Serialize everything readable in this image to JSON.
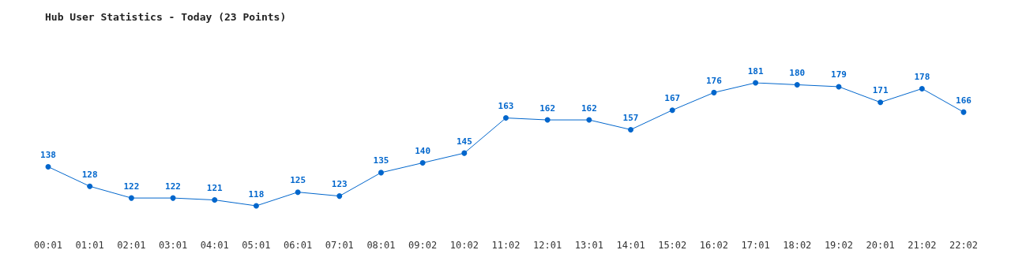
{
  "chart_data": {
    "type": "line",
    "title": "Hub User Statistics - Today (23 Points)",
    "categories": [
      "00:01",
      "01:01",
      "02:01",
      "03:01",
      "04:01",
      "05:01",
      "06:01",
      "07:01",
      "08:01",
      "09:02",
      "10:02",
      "11:02",
      "12:01",
      "13:01",
      "14:01",
      "15:02",
      "16:02",
      "17:01",
      "18:02",
      "19:02",
      "20:01",
      "21:02",
      "22:02"
    ],
    "series": [
      {
        "color": "#0066cc",
        "values": [
          138,
          128,
          122,
          122,
          121,
          118,
          125,
          123,
          135,
          140,
          145,
          163,
          162,
          162,
          157,
          167,
          176,
          181,
          180,
          179,
          171,
          178,
          166
        ]
      }
    ],
    "data_labels": true,
    "marker": "circle",
    "line_style": "solid"
  }
}
